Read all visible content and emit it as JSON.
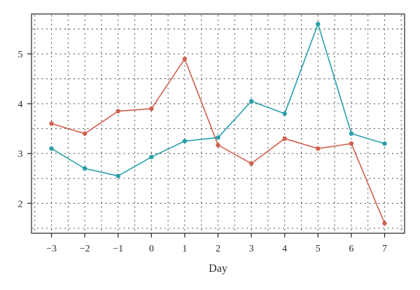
{
  "chart_data": {
    "type": "line",
    "title": "",
    "xlabel": "Day",
    "ylabel": "",
    "x": [
      -3,
      -2,
      -1,
      0,
      1,
      2,
      3,
      4,
      5,
      6,
      7
    ],
    "x_tick_labels": [
      "−3",
      "−2",
      "−1",
      "0",
      "1",
      "2",
      "3",
      "4",
      "5",
      "6",
      "7"
    ],
    "y_ticks": [
      2,
      3,
      4,
      5
    ],
    "xlim": [
      -3.6,
      7.6
    ],
    "ylim": [
      1.4,
      5.8
    ],
    "grid": "dotted",
    "legend": "none",
    "series": [
      {
        "color": "#d0604f",
        "values": [
          3.6,
          3.4,
          3.85,
          3.9,
          4.9,
          3.17,
          2.8,
          3.3,
          3.1,
          3.2,
          1.6
        ]
      },
      {
        "color": "#27a0a8",
        "values": [
          3.1,
          2.7,
          2.55,
          2.93,
          3.25,
          3.32,
          4.05,
          3.8,
          5.6,
          3.4,
          3.2
        ]
      }
    ]
  }
}
